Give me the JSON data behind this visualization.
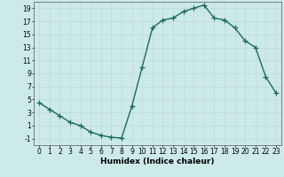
{
  "x": [
    0,
    1,
    2,
    3,
    4,
    5,
    6,
    7,
    8,
    9,
    10,
    11,
    12,
    13,
    14,
    15,
    16,
    17,
    18,
    19,
    20,
    21,
    22,
    23
  ],
  "y": [
    4.5,
    3.5,
    2.5,
    1.5,
    1.0,
    0.0,
    -0.5,
    -0.8,
    -0.9,
    4.0,
    10.0,
    16.0,
    17.2,
    17.5,
    18.5,
    19.0,
    19.5,
    17.5,
    17.2,
    16.0,
    14.0,
    13.0,
    8.5,
    6.0
  ],
  "line_color": "#1a6b5a",
  "marker": "+",
  "markersize": 4,
  "linewidth": 1.0,
  "markeredgewidth": 0.9,
  "xlabel": "Humidex (Indice chaleur)",
  "xlim": [
    -0.5,
    23.5
  ],
  "ylim": [
    -2,
    20
  ],
  "yticks": [
    -1,
    1,
    3,
    5,
    7,
    9,
    11,
    13,
    15,
    17,
    19
  ],
  "xticks": [
    0,
    1,
    2,
    3,
    4,
    5,
    6,
    7,
    8,
    9,
    10,
    11,
    12,
    13,
    14,
    15,
    16,
    17,
    18,
    19,
    20,
    21,
    22,
    23
  ],
  "bg_color": "#cceae8",
  "grid_color": "#c0d8d8",
  "label_fontsize": 6.5,
  "tick_fontsize": 5.5
}
